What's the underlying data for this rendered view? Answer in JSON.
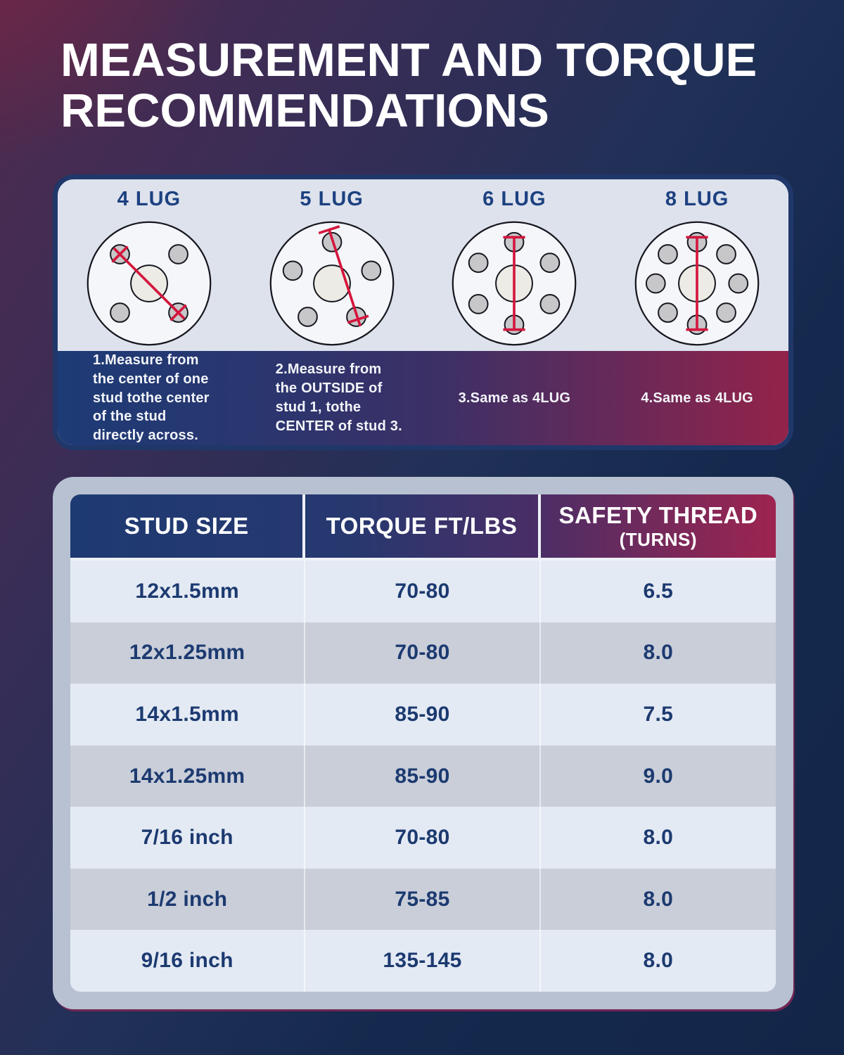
{
  "page": {
    "title_lines": [
      "MEASUREMENT AND TORQUE",
      "RECOMMENDATIONS"
    ]
  },
  "diagram_panel": {
    "lugs": [
      {
        "label": "4 LUG",
        "lug_count": 4,
        "note": "1.Measure from the center of one stud tothe center of the stud directly across."
      },
      {
        "label": "5 LUG",
        "lug_count": 5,
        "note": "2.Measure from the OUTSIDE of stud 1, tothe CENTER of stud 3."
      },
      {
        "label": "6 LUG",
        "lug_count": 6,
        "note": "3.Same as 4LUG"
      },
      {
        "label": "8 LUG",
        "lug_count": 8,
        "note": "4.Same as 4LUG"
      }
    ]
  },
  "table": {
    "headers": [
      {
        "label": "STUD SIZE",
        "sublabel": ""
      },
      {
        "label": "TORQUE FT/LBS",
        "sublabel": ""
      },
      {
        "label": "SAFETY THREAD",
        "sublabel": "(TURNS)"
      }
    ],
    "rows": [
      {
        "stud_size": "12x1.5mm",
        "torque": "70-80",
        "safety_thread": "6.5"
      },
      {
        "stud_size": "12x1.25mm",
        "torque": "70-80",
        "safety_thread": "8.0"
      },
      {
        "stud_size": "14x1.5mm",
        "torque": "85-90",
        "safety_thread": "7.5"
      },
      {
        "stud_size": "14x1.25mm",
        "torque": "85-90",
        "safety_thread": "9.0"
      },
      {
        "stud_size": "7/16 inch",
        "torque": "70-80",
        "safety_thread": "8.0"
      },
      {
        "stud_size": "1/2 inch",
        "torque": "75-85",
        "safety_thread": "8.0"
      },
      {
        "stud_size": "9/16 inch",
        "torque": "135-145",
        "safety_thread": "8.0"
      }
    ]
  },
  "colors": {
    "page_navy": "#15294e",
    "page_purple": "#4f2b4e",
    "corner_red": "#8a2240",
    "panel_border_navy": "#20376a",
    "panel_light": "#dde2ed",
    "lug_label_navy": "#1d4181",
    "wheel_fill": "#f4f6fa",
    "stud_fill": "#c7c7ca",
    "bore_fill": "#edebe5",
    "outline_dark": "#17171f",
    "measure_red": "#d4163c",
    "strip_blue": "#1d3b76",
    "strip_purple": "#3c3066",
    "strip_maroon": "#93234a",
    "table_panel": "#b7c1d1",
    "header_blue": "#1e3a72",
    "header_purple": "#4a2e66",
    "header_maroon": "#9e2450",
    "row_light": "#e4eaf4",
    "row_dark": "#c9ced9",
    "cell_text_navy": "#1c3a70",
    "text_white": "#ffffff"
  }
}
